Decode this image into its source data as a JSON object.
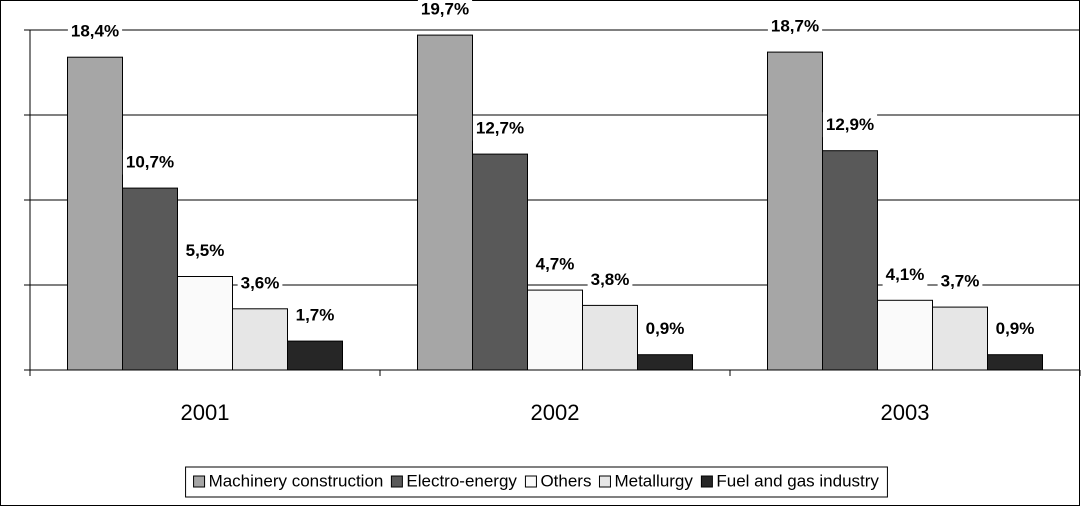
{
  "chart_data": {
    "type": "bar",
    "categories": [
      "2001",
      "2002",
      "2003"
    ],
    "series": [
      {
        "name": "Machinery construction",
        "color": "#a6a6a6",
        "values": [
          18.4,
          19.7,
          18.7
        ],
        "value_labels": [
          "18,4%",
          "19,7%",
          "18,7%"
        ]
      },
      {
        "name": "Electro-energy",
        "color": "#595959",
        "values": [
          10.7,
          12.7,
          12.9
        ],
        "value_labels": [
          "10,7%",
          "12,7%",
          "12,9%"
        ]
      },
      {
        "name": "Others",
        "color": "#fafafa",
        "values": [
          5.5,
          4.7,
          4.1
        ],
        "value_labels": [
          "5,5%",
          "4,7%",
          "4,1%"
        ]
      },
      {
        "name": "Metallurgy",
        "color": "#e6e6e6",
        "values": [
          3.6,
          3.8,
          3.7
        ],
        "value_labels": [
          "3,6%",
          "3,8%",
          "3,7%"
        ]
      },
      {
        "name": "Fuel and gas industry",
        "color": "#262626",
        "values": [
          1.7,
          0.9,
          0.9
        ],
        "value_labels": [
          "1,7%",
          "0,9%",
          "0,9%"
        ]
      }
    ],
    "ylim": [
      0,
      20
    ],
    "yticks": [
      0,
      5,
      10,
      15,
      20
    ],
    "grid": true
  }
}
